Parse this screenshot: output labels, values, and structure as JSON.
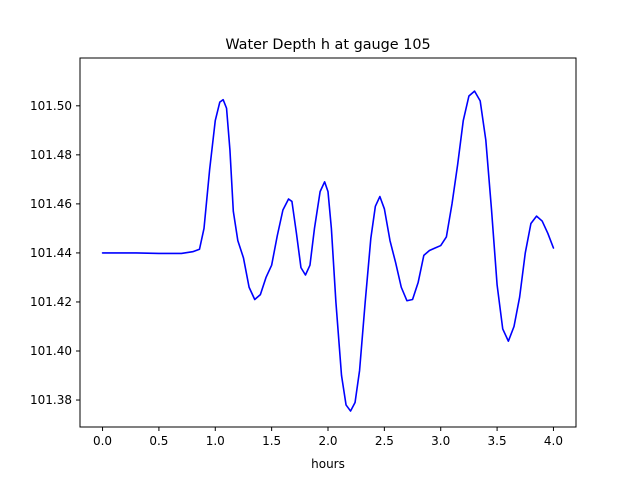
{
  "chart_data": {
    "type": "line",
    "title": "Water Depth h at gauge 105",
    "xlabel": "hours",
    "ylabel": "",
    "xlim": [
      -0.2,
      4.2
    ],
    "ylim": [
      101.369,
      101.5195
    ],
    "xticks": [
      0.0,
      0.5,
      1.0,
      1.5,
      2.0,
      2.5,
      3.0,
      3.5,
      4.0
    ],
    "xtick_labels": [
      "0.0",
      "0.5",
      "1.0",
      "1.5",
      "2.0",
      "2.5",
      "3.0",
      "3.5",
      "4.0"
    ],
    "yticks": [
      101.38,
      101.4,
      101.42,
      101.44,
      101.46,
      101.48,
      101.5
    ],
    "ytick_labels": [
      "101.38",
      "101.40",
      "101.42",
      "101.44",
      "101.46",
      "101.48",
      "101.50"
    ],
    "grid": false,
    "legend": false,
    "series": [
      {
        "color": "#0000ff",
        "points": [
          [
            0.0,
            101.44
          ],
          [
            0.3,
            101.44
          ],
          [
            0.5,
            101.4398
          ],
          [
            0.7,
            101.4398
          ],
          [
            0.8,
            101.4405
          ],
          [
            0.86,
            101.4415
          ],
          [
            0.9,
            101.45
          ],
          [
            0.95,
            101.474
          ],
          [
            1.0,
            101.494
          ],
          [
            1.04,
            101.5015
          ],
          [
            1.07,
            101.5025
          ],
          [
            1.1,
            101.499
          ],
          [
            1.13,
            101.482
          ],
          [
            1.16,
            101.457
          ],
          [
            1.2,
            101.445
          ],
          [
            1.25,
            101.438
          ],
          [
            1.3,
            101.426
          ],
          [
            1.35,
            101.421
          ],
          [
            1.4,
            101.423
          ],
          [
            1.45,
            101.43
          ],
          [
            1.5,
            101.435
          ],
          [
            1.55,
            101.447
          ],
          [
            1.6,
            101.4575
          ],
          [
            1.65,
            101.462
          ],
          [
            1.68,
            101.461
          ],
          [
            1.72,
            101.448
          ],
          [
            1.76,
            101.434
          ],
          [
            1.8,
            101.431
          ],
          [
            1.84,
            101.435
          ],
          [
            1.88,
            101.45
          ],
          [
            1.93,
            101.465
          ],
          [
            1.97,
            101.469
          ],
          [
            2.0,
            101.465
          ],
          [
            2.03,
            101.45
          ],
          [
            2.07,
            101.42
          ],
          [
            2.12,
            101.39
          ],
          [
            2.16,
            101.378
          ],
          [
            2.2,
            101.3755
          ],
          [
            2.24,
            101.379
          ],
          [
            2.28,
            101.392
          ],
          [
            2.33,
            101.42
          ],
          [
            2.38,
            101.446
          ],
          [
            2.42,
            101.459
          ],
          [
            2.46,
            101.463
          ],
          [
            2.5,
            101.458
          ],
          [
            2.55,
            101.445
          ],
          [
            2.6,
            101.436
          ],
          [
            2.65,
            101.426
          ],
          [
            2.7,
            101.4205
          ],
          [
            2.75,
            101.421
          ],
          [
            2.8,
            101.428
          ],
          [
            2.85,
            101.439
          ],
          [
            2.9,
            101.441
          ],
          [
            2.95,
            101.442
          ],
          [
            3.0,
            101.443
          ],
          [
            3.05,
            101.4465
          ],
          [
            3.1,
            101.46
          ],
          [
            3.15,
            101.476
          ],
          [
            3.2,
            101.494
          ],
          [
            3.25,
            101.504
          ],
          [
            3.3,
            101.506
          ],
          [
            3.35,
            101.502
          ],
          [
            3.4,
            101.486
          ],
          [
            3.45,
            101.458
          ],
          [
            3.5,
            101.427
          ],
          [
            3.55,
            101.409
          ],
          [
            3.6,
            101.404
          ],
          [
            3.65,
            101.41
          ],
          [
            3.7,
            101.422
          ],
          [
            3.75,
            101.44
          ],
          [
            3.8,
            101.452
          ],
          [
            3.85,
            101.455
          ],
          [
            3.9,
            101.453
          ],
          [
            3.95,
            101.448
          ],
          [
            4.0,
            101.442
          ]
        ]
      }
    ]
  }
}
